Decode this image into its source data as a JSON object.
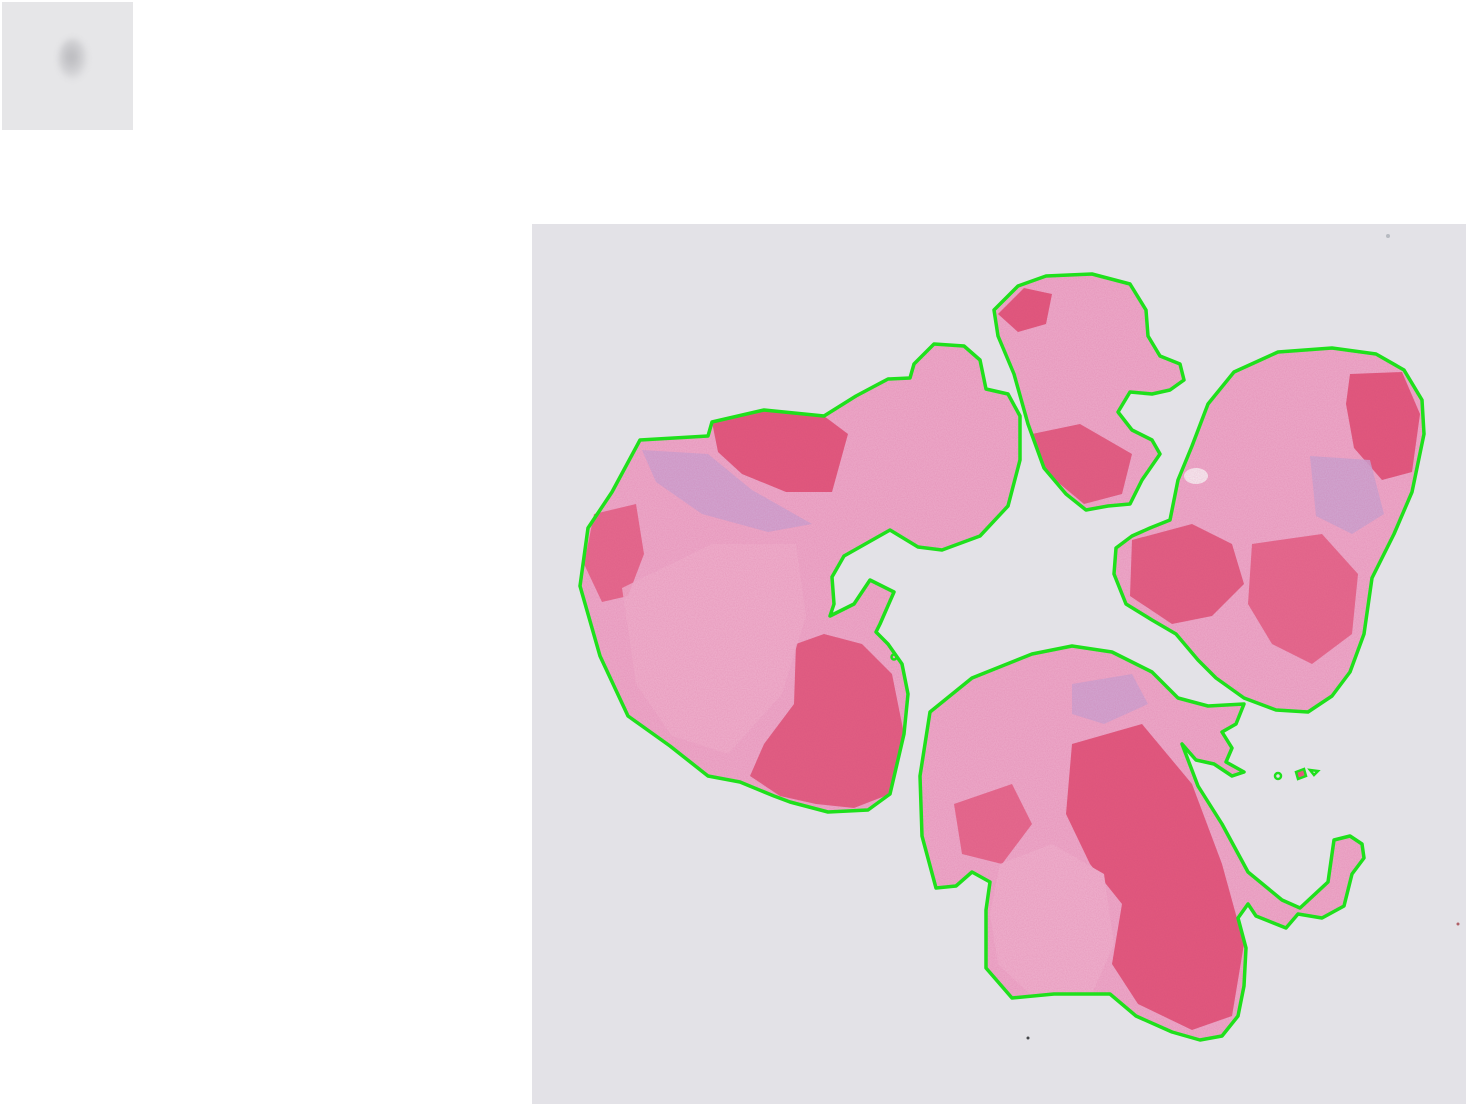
{
  "thumbnail": {
    "icon": "slide-label-thumbnail"
  },
  "slide": {
    "background_color": "#e3e2e7",
    "tissue_color_light": "#eeaccb",
    "tissue_color_dark": "#e2597d",
    "tissue_color_stroma": "#c9a6d3",
    "annotation_color": "#1fe01c",
    "annotation_region_count": 5
  }
}
